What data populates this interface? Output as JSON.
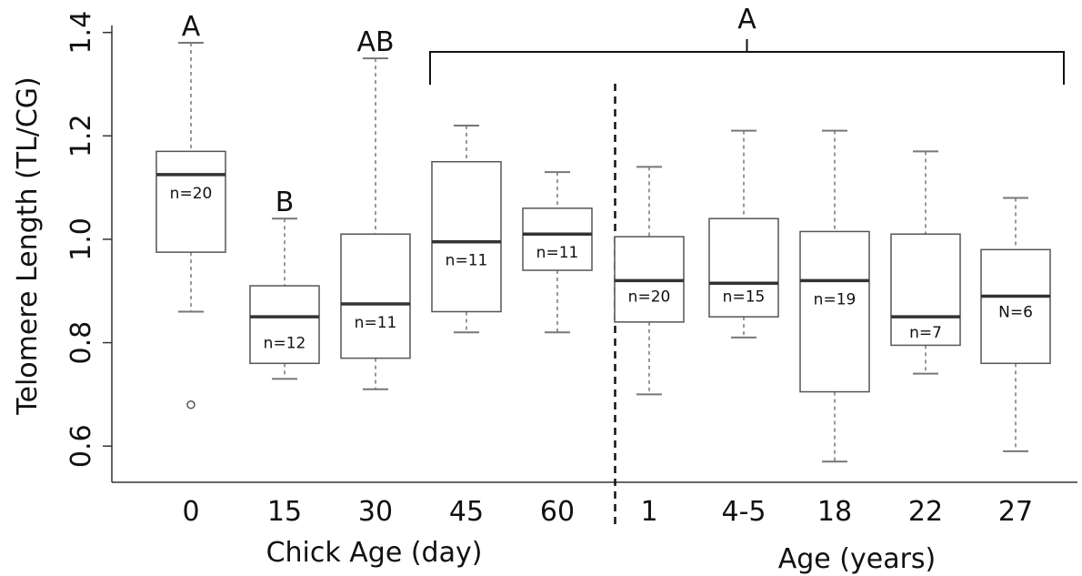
{
  "chart_data": {
    "type": "boxplot",
    "ylabel": "Telomere Length (TL/CG)",
    "ylim": [
      0.53,
      1.41
    ],
    "yticks": [
      "0.6",
      "0.8",
      "1.0",
      "1.2",
      "1.4"
    ],
    "ytick_values": [
      0.6,
      0.8,
      1.0,
      1.2,
      1.4
    ],
    "group_titles": [
      {
        "text": "Chick Age (day)",
        "groups": [
          0,
          4
        ]
      },
      {
        "text": "Age (years)",
        "groups": [
          5,
          9
        ]
      }
    ],
    "categories": [
      "0",
      "15",
      "30",
      "45",
      "60",
      "1",
      "4-5",
      "18",
      "22",
      "27"
    ],
    "boxes": [
      {
        "category": "0",
        "whisker_low": 0.86,
        "q1": 0.975,
        "median": 1.125,
        "q3": 1.17,
        "whisker_high": 1.38,
        "n": "n=20",
        "n_value": 1.09,
        "outliers": [
          0.68
        ]
      },
      {
        "category": "15",
        "whisker_low": 0.73,
        "q1": 0.76,
        "median": 0.85,
        "q3": 0.91,
        "whisker_high": 1.04,
        "n": "n=12",
        "n_value": 0.8,
        "outliers": []
      },
      {
        "category": "30",
        "whisker_low": 0.71,
        "q1": 0.77,
        "median": 0.875,
        "q3": 1.01,
        "whisker_high": 1.35,
        "n": "n=11",
        "n_value": 0.84,
        "outliers": []
      },
      {
        "category": "45",
        "whisker_low": 0.82,
        "q1": 0.86,
        "median": 0.995,
        "q3": 1.15,
        "whisker_high": 1.22,
        "n": "n=11",
        "n_value": 0.96,
        "outliers": []
      },
      {
        "category": "60",
        "whisker_low": 0.82,
        "q1": 0.94,
        "median": 1.01,
        "q3": 1.06,
        "whisker_high": 1.13,
        "n": "n=11",
        "n_value": 0.975,
        "outliers": []
      },
      {
        "category": "1",
        "whisker_low": 0.7,
        "q1": 0.84,
        "median": 0.92,
        "q3": 1.005,
        "whisker_high": 1.14,
        "n": "n=20",
        "n_value": 0.89,
        "outliers": []
      },
      {
        "category": "4-5",
        "whisker_low": 0.81,
        "q1": 0.85,
        "median": 0.915,
        "q3": 1.04,
        "whisker_high": 1.21,
        "n": "n=15",
        "n_value": 0.89,
        "outliers": []
      },
      {
        "category": "18",
        "whisker_low": 0.57,
        "q1": 0.705,
        "median": 0.92,
        "q3": 1.015,
        "whisker_high": 1.21,
        "n": "n=19",
        "n_value": 0.885,
        "outliers": []
      },
      {
        "category": "22",
        "whisker_low": 0.74,
        "q1": 0.795,
        "median": 0.85,
        "q3": 1.01,
        "whisker_high": 1.17,
        "n": "n=7",
        "n_value": 0.82,
        "outliers": []
      },
      {
        "category": "27",
        "whisker_low": 0.59,
        "q1": 0.76,
        "median": 0.89,
        "q3": 0.98,
        "whisker_high": 1.08,
        "n": "N=6",
        "n_value": 0.86,
        "outliers": []
      }
    ],
    "significance_letters": [
      {
        "text": "A",
        "category": "0"
      },
      {
        "text": "B",
        "category": "15"
      },
      {
        "text": "AB",
        "category": "30"
      }
    ],
    "bracket": {
      "text": "A",
      "from_category": "45",
      "to_category": "27"
    },
    "divider_after_category": "60",
    "colors": {
      "box_stroke": "#555555",
      "median": "#333333",
      "whisker": "#777777",
      "axis": "#333333",
      "divider": "#111111",
      "text": "#111111"
    }
  }
}
